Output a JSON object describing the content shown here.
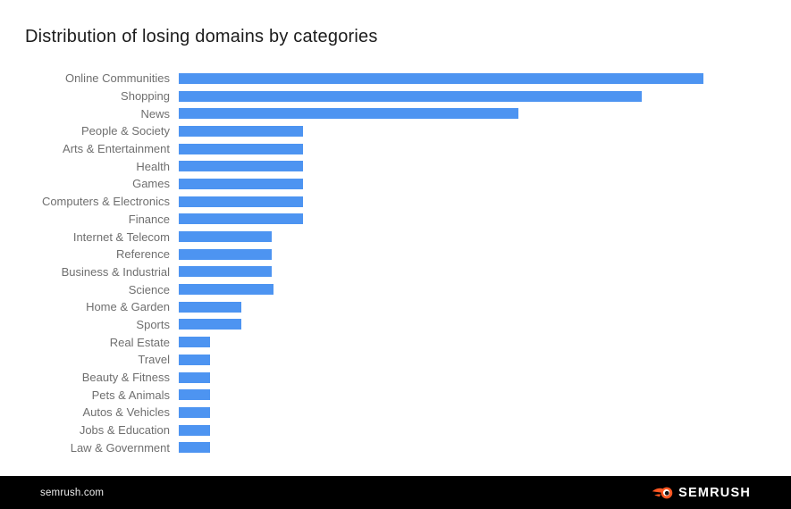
{
  "title": "Distribution of losing domains by categories",
  "footer": {
    "website": "semrush.com",
    "brand": "SEMRUSH",
    "logo_icon": "semrush-flame-icon"
  },
  "colors": {
    "bar_blue": "#4d94f1",
    "label_gray": "#6f6f6f",
    "title_dark": "#1b1b1b",
    "footer_black": "#000000",
    "footer_text": "#ededed",
    "brand_orange": "#ff5722"
  },
  "chart_data": {
    "type": "bar",
    "orientation": "horizontal",
    "title": "Distribution of losing domains by categories",
    "categories": [
      "Online Communities",
      "Shopping",
      "News",
      "People & Society",
      "Arts & Entertainment",
      "Health",
      "Games",
      "Computers & Electronics",
      "Finance",
      "Internet & Telecom",
      "Reference",
      "Business & Industrial",
      "Science",
      "Home & Garden",
      "Sports",
      "Real Estate",
      "Travel",
      "Beauty & Fitness",
      "Pets & Animals",
      "Autos & Vehicles",
      "Jobs & Education",
      "Law & Government"
    ],
    "values": [
      100,
      88.2,
      64.7,
      23.7,
      23.7,
      23.7,
      23.7,
      23.7,
      23.7,
      17.7,
      17.7,
      17.7,
      18.1,
      11.9,
      11.9,
      6.0,
      6.0,
      6.0,
      6.0,
      6.0,
      6.0,
      6.0
    ],
    "value_scale": "relative units, longest bar = 100 (chart shows no numeric axis)",
    "xlabel": "",
    "ylabel": "",
    "grid": false,
    "legend": false,
    "bar_color": "#4d94f1"
  }
}
